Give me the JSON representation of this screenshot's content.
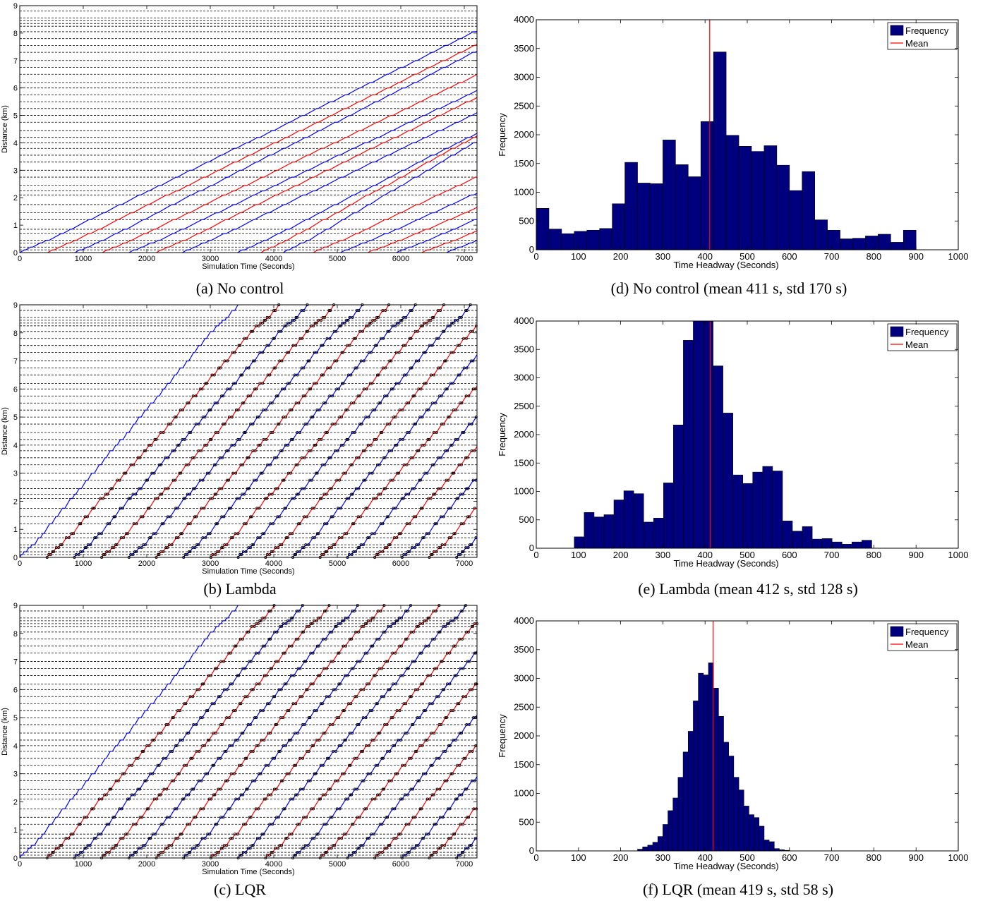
{
  "chart_data": [
    {
      "type": "line",
      "caption": "(a) No control",
      "xlabel": "Simulation Time (Seconds)",
      "ylabel": "Distance (km)",
      "xlim": [
        0,
        7200
      ],
      "ylim": [
        0,
        9
      ],
      "xticks": [
        0,
        1000,
        2000,
        3000,
        4000,
        5000,
        6000,
        7000
      ],
      "yticks": [
        0,
        1,
        2,
        3,
        4,
        5,
        6,
        7,
        8,
        9
      ],
      "stops_km": [
        0.1,
        0.2,
        0.35,
        0.45,
        0.7,
        0.85,
        1.2,
        1.45,
        1.75,
        2.1,
        2.25,
        2.45,
        2.75,
        3.0,
        3.3,
        3.55,
        3.8,
        4.0,
        4.2,
        4.45,
        4.75,
        5.0,
        5.25,
        5.5,
        5.75,
        6.0,
        6.2,
        6.5,
        6.75,
        7.0,
        7.3,
        7.55,
        7.8,
        8.05,
        8.25,
        8.35,
        8.45,
        8.55,
        8.8
      ],
      "series": [
        {
          "color": "#0000ff",
          "start": 0,
          "speed_kmh": 4.7,
          "markers": false
        },
        {
          "color": "#ff0000",
          "start": 440,
          "speed_kmh": 4.7,
          "markers": false
        },
        {
          "color": "#0000ff",
          "start": 870,
          "speed_kmh": 4.9,
          "markers": false
        },
        {
          "color": "#ff0000",
          "start": 1300,
          "speed_kmh": 4.6,
          "markers": false
        },
        {
          "color": "#0000ff",
          "start": 1720,
          "speed_kmh": 4.5,
          "markers": false
        },
        {
          "color": "#ff0000",
          "start": 2150,
          "speed_kmh": 4.7,
          "markers": false
        },
        {
          "color": "#0000ff",
          "start": 2560,
          "speed_kmh": 4.6,
          "markers": false
        },
        {
          "color": "#0000ff",
          "start": 3430,
          "speed_kmh": 4.9,
          "markers": false
        },
        {
          "color": "#ff0000",
          "start": 3800,
          "speed_kmh": 5.4,
          "markers": false
        },
        {
          "color": "#0000ff",
          "start": 4150,
          "speed_kmh": 5.8,
          "markers": false
        },
        {
          "color": "#ff0000",
          "start": 4620,
          "speed_kmh": 4.5,
          "markers": false
        },
        {
          "color": "#0000ff",
          "start": 5050,
          "speed_kmh": 4.2,
          "markers": false
        },
        {
          "color": "#ff0000",
          "start": 5480,
          "speed_kmh": 4.0,
          "markers": false
        },
        {
          "color": "#0000ff",
          "start": 5930,
          "speed_kmh": 4.1,
          "markers": false
        },
        {
          "color": "#ff0000",
          "start": 6330,
          "speed_kmh": 4.0,
          "markers": false
        },
        {
          "color": "#0000ff",
          "start": 6720,
          "speed_kmh": 4.0,
          "markers": false
        }
      ]
    },
    {
      "type": "line",
      "caption": "(b) Lambda",
      "xlabel": "Simulation Time (Seconds)",
      "ylabel": "Distance (km)",
      "xlim": [
        0,
        7200
      ],
      "ylim": [
        0,
        9
      ],
      "xticks": [
        0,
        1000,
        2000,
        3000,
        4000,
        5000,
        6000,
        7000
      ],
      "yticks": [
        0,
        1,
        2,
        3,
        4,
        5,
        6,
        7,
        8,
        9
      ],
      "stops_km": [
        0.1,
        0.2,
        0.35,
        0.45,
        0.7,
        0.85,
        1.2,
        1.45,
        1.75,
        2.1,
        2.25,
        2.45,
        2.75,
        3.0,
        3.3,
        3.55,
        3.8,
        4.0,
        4.2,
        4.45,
        4.75,
        5.0,
        5.25,
        5.5,
        5.75,
        6.0,
        6.2,
        6.5,
        6.75,
        7.0,
        7.3,
        7.55,
        7.8,
        8.05,
        8.25,
        8.35,
        8.45,
        8.55,
        8.8
      ],
      "series": [
        {
          "color": "#0000ff",
          "start": 0,
          "speed_kmh": 14.3,
          "markers": false
        },
        {
          "color": "#ff0000",
          "start": 430,
          "speed_kmh": 13.0,
          "markers": true
        },
        {
          "color": "#0000ff",
          "start": 860,
          "speed_kmh": 13.0,
          "markers": true
        },
        {
          "color": "#ff0000",
          "start": 1290,
          "speed_kmh": 13.0,
          "markers": true
        },
        {
          "color": "#0000ff",
          "start": 1720,
          "speed_kmh": 13.0,
          "markers": true
        },
        {
          "color": "#ff0000",
          "start": 2150,
          "speed_kmh": 13.0,
          "markers": true
        },
        {
          "color": "#0000ff",
          "start": 2580,
          "speed_kmh": 13.0,
          "markers": true
        },
        {
          "color": "#ff0000",
          "start": 3010,
          "speed_kmh": 13.0,
          "markers": true
        },
        {
          "color": "#0000ff",
          "start": 3440,
          "speed_kmh": 13.0,
          "markers": true
        },
        {
          "color": "#ff0000",
          "start": 3870,
          "speed_kmh": 13.0,
          "markers": true
        },
        {
          "color": "#0000ff",
          "start": 4300,
          "speed_kmh": 13.0,
          "markers": true
        },
        {
          "color": "#ff0000",
          "start": 4730,
          "speed_kmh": 13.0,
          "markers": true
        },
        {
          "color": "#0000ff",
          "start": 5160,
          "speed_kmh": 13.0,
          "markers": true
        },
        {
          "color": "#ff0000",
          "start": 5590,
          "speed_kmh": 13.0,
          "markers": true
        },
        {
          "color": "#0000ff",
          "start": 6020,
          "speed_kmh": 13.0,
          "markers": true
        },
        {
          "color": "#ff0000",
          "start": 6450,
          "speed_kmh": 13.0,
          "markers": true
        },
        {
          "color": "#0000ff",
          "start": 6880,
          "speed_kmh": 13.0,
          "markers": true
        }
      ]
    },
    {
      "type": "line",
      "caption": "(c) LQR",
      "xlabel": "Simulation Time (Seconds)",
      "ylabel": "Distance (km)",
      "xlim": [
        0,
        7200
      ],
      "ylim": [
        0,
        9
      ],
      "xticks": [
        0,
        1000,
        2000,
        3000,
        4000,
        5000,
        6000,
        7000
      ],
      "yticks": [
        0,
        1,
        2,
        3,
        4,
        5,
        6,
        7,
        8,
        9
      ],
      "stops_km": [
        0.1,
        0.2,
        0.35,
        0.45,
        0.7,
        0.85,
        1.2,
        1.45,
        1.75,
        2.1,
        2.25,
        2.45,
        2.75,
        3.0,
        3.3,
        3.55,
        3.8,
        4.0,
        4.2,
        4.45,
        4.75,
        5.0,
        5.25,
        5.5,
        5.75,
        6.0,
        6.2,
        6.5,
        6.75,
        7.0,
        7.3,
        7.55,
        7.8,
        8.05,
        8.25,
        8.35,
        8.45,
        8.55,
        8.8
      ],
      "series": [
        {
          "color": "#0000ff",
          "start": 0,
          "speed_kmh": 14.3,
          "markers": false
        },
        {
          "color": "#ff0000",
          "start": 430,
          "speed_kmh": 13.4,
          "markers": true
        },
        {
          "color": "#0000ff",
          "start": 860,
          "speed_kmh": 13.4,
          "markers": true
        },
        {
          "color": "#ff0000",
          "start": 1290,
          "speed_kmh": 13.4,
          "markers": true
        },
        {
          "color": "#0000ff",
          "start": 1720,
          "speed_kmh": 13.4,
          "markers": true
        },
        {
          "color": "#ff0000",
          "start": 2150,
          "speed_kmh": 13.4,
          "markers": true
        },
        {
          "color": "#0000ff",
          "start": 2580,
          "speed_kmh": 13.4,
          "markers": true
        },
        {
          "color": "#ff0000",
          "start": 3010,
          "speed_kmh": 13.4,
          "markers": true
        },
        {
          "color": "#0000ff",
          "start": 3440,
          "speed_kmh": 13.4,
          "markers": true
        },
        {
          "color": "#ff0000",
          "start": 3870,
          "speed_kmh": 13.4,
          "markers": true
        },
        {
          "color": "#0000ff",
          "start": 4300,
          "speed_kmh": 13.4,
          "markers": true
        },
        {
          "color": "#ff0000",
          "start": 4730,
          "speed_kmh": 13.4,
          "markers": true
        },
        {
          "color": "#0000ff",
          "start": 5160,
          "speed_kmh": 13.4,
          "markers": true
        },
        {
          "color": "#ff0000",
          "start": 5590,
          "speed_kmh": 13.4,
          "markers": true
        },
        {
          "color": "#0000ff",
          "start": 6020,
          "speed_kmh": 13.4,
          "markers": true
        },
        {
          "color": "#ff0000",
          "start": 6450,
          "speed_kmh": 13.4,
          "markers": true
        },
        {
          "color": "#0000ff",
          "start": 6880,
          "speed_kmh": 13.4,
          "markers": true
        }
      ]
    },
    {
      "type": "bar",
      "caption": "(d) No control (mean 411 s, std 170 s)",
      "xlabel": "Time Headway (Seconds)",
      "ylabel": "Frequency",
      "xlim": [
        0,
        1000
      ],
      "ylim": [
        0,
        4000
      ],
      "xticks": [
        0,
        100,
        200,
        300,
        400,
        500,
        600,
        700,
        800,
        900,
        1000
      ],
      "yticks": [
        0,
        500,
        1000,
        1500,
        2000,
        2500,
        3000,
        3500,
        4000
      ],
      "bin_start": 0,
      "bin_width": 30,
      "values": [
        720,
        360,
        280,
        320,
        340,
        370,
        800,
        1520,
        1160,
        1150,
        1910,
        1480,
        1270,
        2230,
        3440,
        1990,
        1800,
        1710,
        1810,
        1470,
        1030,
        1360,
        520,
        340,
        190,
        200,
        240,
        270,
        130,
        340
      ],
      "mean": 411,
      "legend": [
        "Frequency",
        "Mean"
      ],
      "bar_color": "#00007f",
      "mean_color": "#ff0000"
    },
    {
      "type": "bar",
      "caption": "(e) Lambda (mean 412 s, std 128 s)",
      "xlabel": "Time Headway (Seconds)",
      "ylabel": "Frequency",
      "xlim": [
        0,
        1000
      ],
      "ylim": [
        0,
        4000
      ],
      "xticks": [
        0,
        100,
        200,
        300,
        400,
        500,
        600,
        700,
        800,
        900,
        1000
      ],
      "yticks": [
        0,
        500,
        1000,
        1500,
        2000,
        2500,
        3000,
        3500,
        4000
      ],
      "bin_start": 90,
      "bin_width": 23.5,
      "values": [
        200,
        630,
        550,
        590,
        850,
        1010,
        960,
        460,
        530,
        1150,
        2170,
        3660,
        4000,
        4000,
        3210,
        2380,
        1290,
        1140,
        1340,
        1440,
        1360,
        480,
        300,
        380,
        160,
        170,
        110,
        70,
        110,
        140
      ],
      "mean": 412,
      "legend": [
        "Frequency",
        "Mean"
      ],
      "bar_color": "#00007f",
      "mean_color": "#ff0000"
    },
    {
      "type": "bar",
      "caption": "(f) LQR (mean 419 s, std 58 s)",
      "xlabel": "Time Headway (Seconds)",
      "ylabel": "Frequency",
      "xlim": [
        0,
        1000
      ],
      "ylim": [
        0,
        4000
      ],
      "xticks": [
        0,
        100,
        200,
        300,
        400,
        500,
        600,
        700,
        800,
        900,
        1000
      ],
      "yticks": [
        0,
        500,
        1000,
        1500,
        2000,
        2500,
        3000,
        3500,
        4000
      ],
      "bin_start": 240,
      "bin_width": 12,
      "values": [
        30,
        70,
        100,
        150,
        250,
        460,
        700,
        920,
        1280,
        1720,
        2080,
        2610,
        3090,
        3060,
        3270,
        2830,
        2340,
        1890,
        1650,
        1280,
        1060,
        780,
        630,
        580,
        430,
        190,
        160,
        40,
        20,
        10
      ],
      "mean": 419,
      "legend": [
        "Frequency",
        "Mean"
      ],
      "bar_color": "#00007f",
      "mean_color": "#ff0000"
    }
  ]
}
